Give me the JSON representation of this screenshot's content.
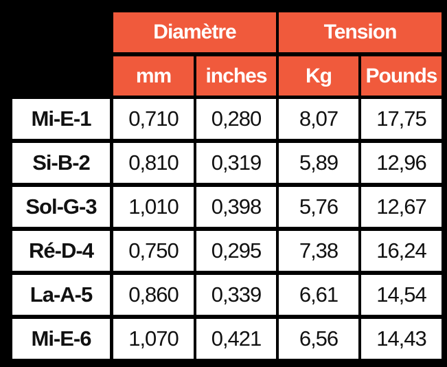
{
  "table": {
    "groups": [
      "Diamètre",
      "Tension"
    ],
    "subheaders": [
      "mm",
      "inches",
      "Kg",
      "Pounds"
    ],
    "rows": [
      [
        "Mi-E-1",
        "0,710",
        "0,280",
        "8,07",
        "17,75"
      ],
      [
        "Si-B-2",
        "0,810",
        "0,319",
        "5,89",
        "12,96"
      ],
      [
        "Sol-G-3",
        "1,010",
        "0,398",
        "5,76",
        "12,67"
      ],
      [
        "Ré-D-4",
        "0,750",
        "0,295",
        "7,38",
        "16,24"
      ],
      [
        "La-A-5",
        "0,860",
        "0,339",
        "6,61",
        "14,54"
      ],
      [
        "Mi-E-6",
        "1,070",
        "0,421",
        "6,56",
        "14,43"
      ]
    ]
  }
}
